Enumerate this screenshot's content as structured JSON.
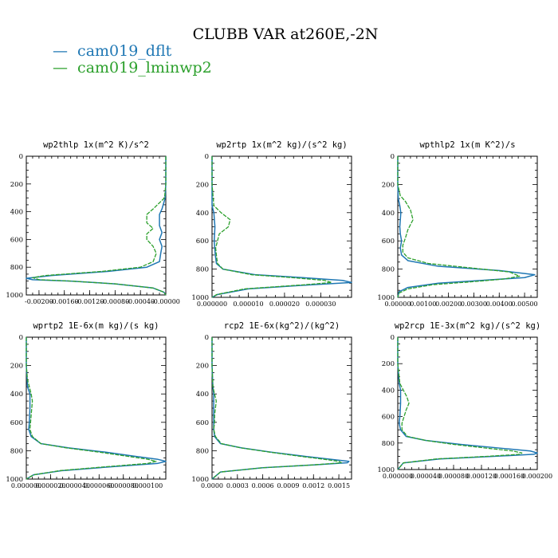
{
  "figure_title": "CLUBB VAR at260E,-2N",
  "legend": [
    {
      "label": "cam019_dflt",
      "color": "#1f77b4",
      "marker": "—"
    },
    {
      "label": "cam019_lminwp2",
      "color": "#2ca02c",
      "marker": "—"
    }
  ],
  "chart_data": [
    {
      "type": "line",
      "title": "wp2thlp   1x(m^2 K)/s^2",
      "xlim": [
        -0.0022,
        0.0
      ],
      "ylim": [
        1000,
        0
      ],
      "yticks": [
        0,
        200,
        400,
        600,
        800,
        1000
      ],
      "xticklabels": [
        "-0.00200",
        "-0.00160",
        "-0.00120",
        "-0.00080",
        "-0.00040",
        "-0.00000"
      ],
      "xtickvalues": [
        -0.002,
        -0.0016,
        -0.0012,
        -0.0008,
        -0.0004,
        0.0
      ],
      "series": [
        {
          "name": "cam019_dflt",
          "pressure": [
            0,
            100,
            200,
            300,
            380,
            420,
            500,
            550,
            600,
            650,
            700,
            760,
            800,
            830,
            860,
            880,
            890,
            900,
            920,
            950,
            980,
            1000
          ],
          "values": [
            0.0,
            0.0,
            0.0,
            -1e-05,
            -6e-05,
            -0.0001,
            -0.0001,
            -6e-05,
            -0.0001,
            -6e-05,
            -8e-05,
            -0.0001,
            -0.0003,
            -0.0009,
            -0.0018,
            -0.0022,
            -0.0021,
            -0.0015,
            -0.0008,
            -0.0002,
            -3e-05,
            0.0
          ]
        },
        {
          "name": "cam019_lminwp2",
          "pressure": [
            0,
            100,
            200,
            300,
            380,
            420,
            480,
            520,
            560,
            600,
            650,
            700,
            760,
            800,
            830,
            860,
            875,
            890,
            900,
            920,
            950,
            980,
            1000
          ],
          "values": [
            0.0,
            0.0,
            0.0,
            -2e-05,
            -0.0002,
            -0.0003,
            -0.0003,
            -0.0002,
            -0.0003,
            -0.0003,
            -0.0002,
            -0.00015,
            -0.0002,
            -0.0004,
            -0.001,
            -0.0019,
            -0.0021,
            -0.002,
            -0.0015,
            -0.0008,
            -0.0002,
            -3e-05,
            0.0
          ]
        }
      ]
    },
    {
      "type": "line",
      "title": "wp2rtp   1x(m^2 kg)/(s^2 kg)",
      "xlim": [
        0.0,
        3.85e-05
      ],
      "ylim": [
        1000,
        0
      ],
      "yticks": [
        0,
        200,
        400,
        600,
        800,
        1000
      ],
      "xticklabels": [
        "0.000000",
        "0.000010",
        "0.000020",
        "0.000030"
      ],
      "xtickvalues": [
        0.0,
        1e-05,
        2e-05,
        3e-05
      ],
      "series": [
        {
          "name": "cam019_dflt",
          "pressure": [
            0,
            200,
            350,
            400,
            500,
            600,
            700,
            760,
            800,
            840,
            860,
            880,
            895,
            910,
            940,
            980,
            1000
          ],
          "values": [
            0.0,
            0.0,
            0.0,
            5e-07,
            8e-07,
            6e-07,
            9e-07,
            1.2e-06,
            3e-06,
            1.2e-05,
            2.5e-05,
            3.6e-05,
            3.85e-05,
            2.8e-05,
            1e-05,
            1.5e-06,
            0.0
          ]
        },
        {
          "name": "cam019_lminwp2",
          "pressure": [
            0,
            200,
            350,
            400,
            450,
            500,
            550,
            600,
            650,
            700,
            760,
            800,
            840,
            860,
            880,
            895,
            910,
            940,
            980,
            1000
          ],
          "values": [
            0.0,
            0.0,
            5e-07,
            2.5e-06,
            5e-06,
            4.5e-06,
            2e-06,
            1.5e-06,
            1e-06,
            1.2e-06,
            1.5e-06,
            3e-06,
            1.1e-05,
            2.2e-05,
            3.1e-05,
            3.3e-05,
            2.6e-05,
            9e-06,
            1.3e-06,
            0.0
          ]
        }
      ]
    },
    {
      "type": "line",
      "title": "wpthlp2   1x(m K^2)/s",
      "xlim": [
        0.0,
        0.0055
      ],
      "ylim": [
        1000,
        0
      ],
      "yticks": [
        0,
        200,
        400,
        600,
        800,
        1000
      ],
      "xticklabels": [
        "0.00000",
        "0.00100",
        "0.00200",
        "0.00300",
        "0.00400",
        "0.00500"
      ],
      "xtickvalues": [
        0.0,
        0.001,
        0.002,
        0.003,
        0.004,
        0.005
      ],
      "series": [
        {
          "name": "cam019_dflt",
          "pressure": [
            0,
            200,
            300,
            350,
            400,
            450,
            500,
            550,
            600,
            650,
            700,
            740,
            780,
            810,
            840,
            860,
            880,
            900,
            930,
            960,
            1000
          ],
          "values": [
            0.0,
            0.0,
            2e-05,
            8e-05,
            0.00012,
            0.0001,
            8e-05,
            0.0001,
            0.00015,
            0.0001,
            0.00015,
            0.0004,
            0.0016,
            0.004,
            0.0054,
            0.005,
            0.0033,
            0.0016,
            0.0004,
            5e-05,
            0.0
          ]
        },
        {
          "name": "cam019_lminwp2",
          "pressure": [
            0,
            200,
            280,
            320,
            380,
            450,
            520,
            580,
            630,
            680,
            720,
            760,
            790,
            820,
            850,
            870,
            890,
            910,
            940,
            970,
            1000
          ],
          "values": [
            0.0,
            0.0,
            0.0001,
            0.0003,
            0.0005,
            0.0006,
            0.0004,
            0.0003,
            0.0002,
            0.0002,
            0.0004,
            0.0012,
            0.0028,
            0.0044,
            0.0048,
            0.0042,
            0.0029,
            0.0014,
            0.0004,
            5e-05,
            0.0
          ]
        }
      ]
    },
    {
      "type": "line",
      "title": "wprtp2   1E-6x(m kg)/(s kg)",
      "xlim": [
        0.0,
        0.000115
      ],
      "ylim": [
        1000,
        0
      ],
      "yticks": [
        0,
        200,
        400,
        600,
        800,
        1000
      ],
      "xticklabels": [
        "0.000000",
        "0.000020",
        "0.000040",
        "0.000060",
        "0.000080",
        "0.000100"
      ],
      "xtickvalues": [
        0.0,
        2e-05,
        4e-05,
        6e-05,
        8e-05,
        0.0001
      ],
      "series": [
        {
          "name": "cam019_dflt",
          "pressure": [
            0,
            200,
            350,
            400,
            500,
            600,
            650,
            700,
            750,
            780,
            810,
            840,
            860,
            875,
            890,
            910,
            940,
            970,
            1000
          ],
          "values": [
            0.0,
            0.0,
            1e-06,
            3e-06,
            3e-06,
            2.5e-06,
            2e-06,
            4e-06,
            1.2e-05,
            3.5e-05,
            6.5e-05,
            9e-05,
            0.000108,
            0.000115,
            0.000108,
            7.5e-05,
            3e-05,
            6e-06,
            0.0
          ]
        },
        {
          "name": "cam019_lminwp2",
          "pressure": [
            0,
            200,
            300,
            350,
            400,
            450,
            500,
            550,
            600,
            650,
            700,
            750,
            780,
            810,
            840,
            860,
            875,
            890,
            910,
            940,
            970,
            1000
          ],
          "values": [
            0.0,
            0.0,
            1e-06,
            2.5e-06,
            4e-06,
            5e-06,
            4.5e-06,
            4e-06,
            3.5e-06,
            3e-06,
            5e-06,
            1.2e-05,
            3.3e-05,
            6e-05,
            8.4e-05,
            0.0001,
            0.000107,
            0.0001,
            7e-05,
            2.8e-05,
            6e-06,
            0.0
          ]
        }
      ]
    },
    {
      "type": "line",
      "title": "rcp2   1E-6x(kg^2)/(kg^2)",
      "xlim": [
        0.0,
        0.00165
      ],
      "ylim": [
        1000,
        0
      ],
      "yticks": [
        0,
        200,
        400,
        600,
        800,
        1000
      ],
      "xticklabels": [
        "0.0000",
        "0.0003",
        "0.0006",
        "0.0009",
        "0.0012",
        "0.0015"
      ],
      "xtickvalues": [
        0.0,
        0.0003,
        0.0006,
        0.0009,
        0.0012,
        0.0015
      ],
      "series": [
        {
          "name": "cam019_dflt",
          "pressure": [
            0,
            200,
            350,
            400,
            500,
            600,
            650,
            700,
            750,
            780,
            810,
            840,
            860,
            875,
            885,
            900,
            920,
            950,
            1000
          ],
          "values": [
            0.0,
            0.0,
            1e-05,
            2e-05,
            2e-05,
            2e-05,
            2e-05,
            3e-05,
            0.0001,
            0.00035,
            0.0007,
            0.0011,
            0.0014,
            0.00162,
            0.0016,
            0.0012,
            0.0006,
            0.0001,
            0.0
          ]
        },
        {
          "name": "cam019_lminwp2",
          "pressure": [
            0,
            200,
            350,
            400,
            450,
            500,
            550,
            600,
            650,
            700,
            750,
            780,
            810,
            840,
            860,
            875,
            885,
            900,
            920,
            950,
            1000
          ],
          "values": [
            0.0,
            0.0,
            1e-05,
            3e-05,
            5e-05,
            4e-05,
            3e-05,
            3e-05,
            2e-05,
            4e-05,
            0.00011,
            0.00034,
            0.00068,
            0.00105,
            0.00132,
            0.0015,
            0.00153,
            0.0012,
            0.0006,
            0.0001,
            0.0
          ]
        }
      ]
    },
    {
      "type": "line",
      "title": "wp2rcp   1E-3x(m^2 kg)/(s^2 kg)",
      "xlim": [
        0.0,
        0.0002
      ],
      "ylim": [
        1000,
        0
      ],
      "yticks": [
        0,
        200,
        400,
        600,
        800,
        1000
      ],
      "xticklabels": [
        "0.000000",
        "0.000040",
        "0.000080",
        "0.000120",
        "0.000160",
        "0.000200"
      ],
      "xtickvalues": [
        0.0,
        4e-05,
        8e-05,
        0.00012,
        0.00016,
        0.0002
      ],
      "series": [
        {
          "name": "cam019_dflt",
          "pressure": [
            0,
            200,
            350,
            400,
            500,
            600,
            650,
            700,
            750,
            780,
            810,
            840,
            860,
            875,
            885,
            900,
            920,
            950,
            1000
          ],
          "values": [
            0.0,
            0.0,
            2e-06,
            4e-06,
            4e-06,
            3e-06,
            2e-06,
            4e-06,
            1.2e-05,
            4e-05,
            9e-05,
            0.00015,
            0.00019,
            0.0002,
            0.000195,
            0.00014,
            6e-05,
            8e-06,
            0.0
          ]
        },
        {
          "name": "cam019_lminwp2",
          "pressure": [
            0,
            200,
            350,
            400,
            450,
            500,
            550,
            600,
            650,
            700,
            750,
            780,
            810,
            840,
            860,
            875,
            885,
            900,
            920,
            950,
            1000
          ],
          "values": [
            0.0,
            0.0,
            3e-06,
            8e-06,
            1.3e-05,
            1.6e-05,
            1.2e-05,
            9e-06,
            6e-06,
            6e-06,
            1.4e-05,
            4e-05,
            8e-05,
            0.00013,
            0.000165,
            0.000178,
            0.000175,
            0.00013,
            5.5e-05,
            8e-06,
            0.0
          ]
        }
      ]
    }
  ]
}
